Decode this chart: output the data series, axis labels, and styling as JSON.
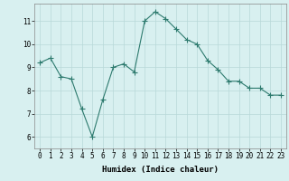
{
  "x": [
    0,
    1,
    2,
    3,
    4,
    5,
    6,
    7,
    8,
    9,
    10,
    11,
    12,
    13,
    14,
    15,
    16,
    17,
    18,
    19,
    20,
    21,
    22,
    23
  ],
  "y": [
    9.2,
    9.4,
    8.6,
    8.5,
    7.2,
    6.0,
    7.6,
    9.0,
    9.15,
    8.8,
    11.0,
    11.4,
    11.1,
    10.65,
    10.2,
    10.0,
    9.3,
    8.9,
    8.4,
    8.4,
    8.1,
    8.1,
    7.8,
    7.8
  ],
  "line_color": "#2d7a6e",
  "marker": "+",
  "marker_size": 3,
  "background_color": "#d8f0f0",
  "grid_color": "#b8d8d8",
  "axis_bg_color": "#d8f0f0",
  "xlabel": "Humidex (Indice chaleur)",
  "xlim": [
    -0.5,
    23.5
  ],
  "ylim": [
    5.5,
    11.75
  ],
  "yticks": [
    6,
    7,
    8,
    9,
    10,
    11
  ],
  "xticks": [
    0,
    1,
    2,
    3,
    4,
    5,
    6,
    7,
    8,
    9,
    10,
    11,
    12,
    13,
    14,
    15,
    16,
    17,
    18,
    19,
    20,
    21,
    22,
    23
  ],
  "xlabel_fontsize": 6.5,
  "tick_fontsize": 5.5,
  "linewidth": 0.8,
  "marker_color": "#2d7a6e",
  "marker_size_pts": 4
}
